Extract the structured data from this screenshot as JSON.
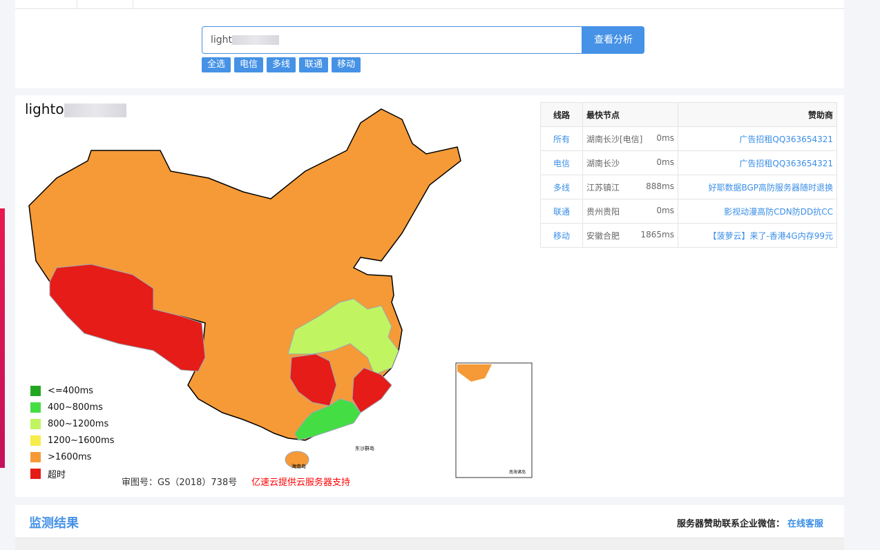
{
  "search": {
    "value_visible": "light",
    "button": "查看分析",
    "filters": [
      "全选",
      "电信",
      "多线",
      "联通",
      "移动"
    ]
  },
  "result": {
    "host_visible": "lighto"
  },
  "table": {
    "headers": [
      "线路",
      "最快节点",
      "赞助商"
    ],
    "rows": [
      {
        "line": "所有",
        "node": "湖南长沙[电信]",
        "ms": "0ms",
        "sponsor": "广告招租QQ363654321"
      },
      {
        "line": "电信",
        "node": "湖南长沙",
        "ms": "0ms",
        "sponsor": "广告招租QQ363654321"
      },
      {
        "line": "多线",
        "node": "江苏镇江",
        "ms": "888ms",
        "sponsor": "好耶数据BGP高防服务器随时退换"
      },
      {
        "line": "联通",
        "node": "贵州贵阳",
        "ms": "0ms",
        "sponsor": "影视动漫高防CDN防DD抗CC"
      },
      {
        "line": "移动",
        "node": "安徽合肥",
        "ms": "1865ms",
        "sponsor": "【菠萝云】来了-香港4G内存99元"
      }
    ]
  },
  "legend": [
    {
      "label": "<=400ms",
      "color": "#22a722"
    },
    {
      "label": "400~800ms",
      "color": "#44dd44"
    },
    {
      "label": "800~1200ms",
      "color": "#c1f461"
    },
    {
      "label": "1200~1600ms",
      "color": "#f6ec4a"
    },
    {
      "label": ">1600ms",
      "color": "#f59a37"
    },
    {
      "label": "超时",
      "color": "#e51c17"
    }
  ],
  "map": {
    "approval": "审图号：GS（2018）738号",
    "credit": "亿速云提供云服务器支持",
    "labels": [
      "海南岛",
      "东沙群岛",
      "南海诸岛"
    ]
  },
  "monitor": {
    "title": "监测结果",
    "contact_label": "服务器赞助联系企业微信：",
    "contact_link": "在线客服"
  }
}
